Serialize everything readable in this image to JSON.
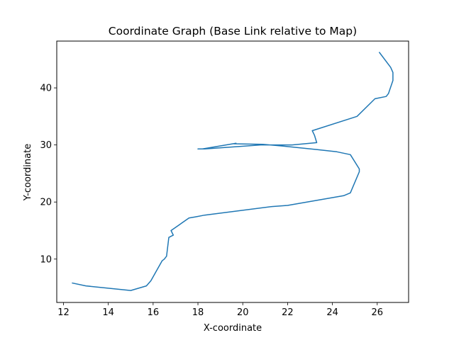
{
  "chart_data": {
    "type": "line",
    "title": "Coordinate Graph (Base Link relative to Map)",
    "xlabel": "X-coordinate",
    "ylabel": "Y-coordinate",
    "xlim": [
      11.7,
      27.4
    ],
    "ylim": [
      2.4,
      48.2
    ],
    "xticks": [
      12,
      14,
      16,
      18,
      20,
      22,
      24,
      26
    ],
    "yticks": [
      10,
      20,
      30,
      40
    ],
    "grid": false,
    "series": [
      {
        "color": "#1f77b4",
        "x": [
          26.1,
          26.6,
          26.7,
          26.7,
          26.5,
          26.4,
          25.9,
          25.1,
          23.1,
          23.2,
          23.3,
          22.2,
          20.8,
          19.7,
          18.3,
          18.0,
          18.2,
          19.7,
          19.6,
          20.9,
          21.8,
          23.3,
          24.2,
          24.8,
          25.2,
          25.2,
          24.8,
          24.5,
          22.0,
          21.3,
          18.3,
          17.9,
          17.6,
          16.8,
          16.9,
          16.7,
          16.6,
          16.5,
          16.4,
          15.9,
          15.7,
          15.0,
          13.0,
          12.4
        ],
        "y": [
          46.2,
          43.6,
          42.7,
          41.3,
          39.0,
          38.5,
          38.1,
          35.0,
          32.5,
          31.7,
          30.4,
          30.0,
          30.0,
          29.7,
          29.3,
          29.3,
          29.3,
          30.3,
          30.2,
          30.1,
          29.8,
          29.2,
          28.8,
          28.3,
          25.8,
          25.3,
          21.6,
          21.1,
          19.4,
          19.2,
          17.7,
          17.4,
          17.2,
          15.0,
          14.2,
          13.8,
          10.5,
          10.0,
          9.7,
          6.2,
          5.3,
          4.5,
          5.3,
          5.8
        ]
      }
    ]
  }
}
